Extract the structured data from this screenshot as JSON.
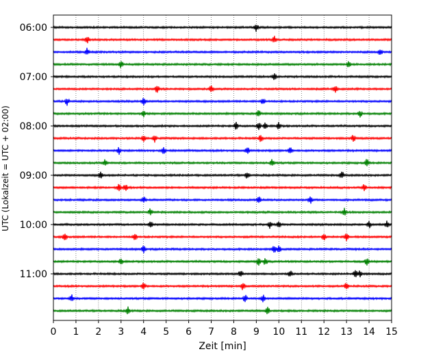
{
  "chart_data": {
    "type": "line",
    "xlabel": "Zeit  [min]",
    "ylabel": "UTC (Lokalzeit = UTC + 02:00)",
    "xlim": [
      0,
      15
    ],
    "x_ticks": [
      0,
      1,
      2,
      3,
      4,
      5,
      6,
      7,
      8,
      9,
      10,
      11,
      12,
      13,
      14,
      15
    ],
    "y_ticks": [
      "06:00",
      "07:00",
      "08:00",
      "09:00",
      "10:00",
      "11:00"
    ],
    "grid": "vertical dotted lines at each minute",
    "trace_colors": [
      "#000000",
      "#ff0000",
      "#0000ff",
      "#008000"
    ],
    "traces": [
      {
        "start": "06:00",
        "events": [
          9.0
        ]
      },
      {
        "start": "06:15",
        "events": [
          1.5,
          9.8
        ]
      },
      {
        "start": "06:30",
        "events": [
          1.5,
          14.5
        ]
      },
      {
        "start": "06:45",
        "events": [
          3.0,
          13.1
        ]
      },
      {
        "start": "07:00",
        "events": [
          9.8
        ]
      },
      {
        "start": "07:15",
        "events": [
          4.6,
          7.0,
          12.5
        ]
      },
      {
        "start": "07:30",
        "events": [
          0.6,
          4.0,
          9.3
        ]
      },
      {
        "start": "07:45",
        "events": [
          4.0,
          9.1,
          13.6
        ]
      },
      {
        "start": "08:00",
        "events": [
          8.1,
          9.1,
          9.4,
          10.0
        ]
      },
      {
        "start": "08:15",
        "events": [
          4.0,
          4.5,
          9.2,
          13.3
        ]
      },
      {
        "start": "08:30",
        "events": [
          2.9,
          4.9,
          8.6,
          10.5
        ]
      },
      {
        "start": "08:45",
        "events": [
          2.3,
          9.7,
          13.9
        ]
      },
      {
        "start": "09:00",
        "events": [
          2.1,
          8.6,
          12.8
        ]
      },
      {
        "start": "09:15",
        "events": [
          2.9,
          3.2,
          13.8
        ]
      },
      {
        "start": "09:30",
        "events": [
          4.0,
          9.1,
          11.4
        ]
      },
      {
        "start": "09:45",
        "events": [
          4.3,
          12.9
        ]
      },
      {
        "start": "10:00",
        "events": [
          4.3,
          9.6,
          10.0,
          14.0,
          14.8
        ]
      },
      {
        "start": "10:15",
        "events": [
          0.5,
          3.6,
          12.0,
          13.0
        ]
      },
      {
        "start": "10:30",
        "events": [
          4.0,
          9.8,
          10.0
        ]
      },
      {
        "start": "10:45",
        "events": [
          3.0,
          9.1,
          9.4,
          13.9
        ]
      },
      {
        "start": "11:00",
        "events": [
          8.3,
          10.5,
          13.4,
          13.6
        ]
      },
      {
        "start": "11:15",
        "events": [
          4.0,
          8.4,
          13.0
        ]
      },
      {
        "start": "11:30",
        "events": [
          0.8,
          8.5,
          9.3
        ]
      },
      {
        "start": "11:45",
        "events": [
          3.3,
          9.5
        ]
      }
    ]
  }
}
